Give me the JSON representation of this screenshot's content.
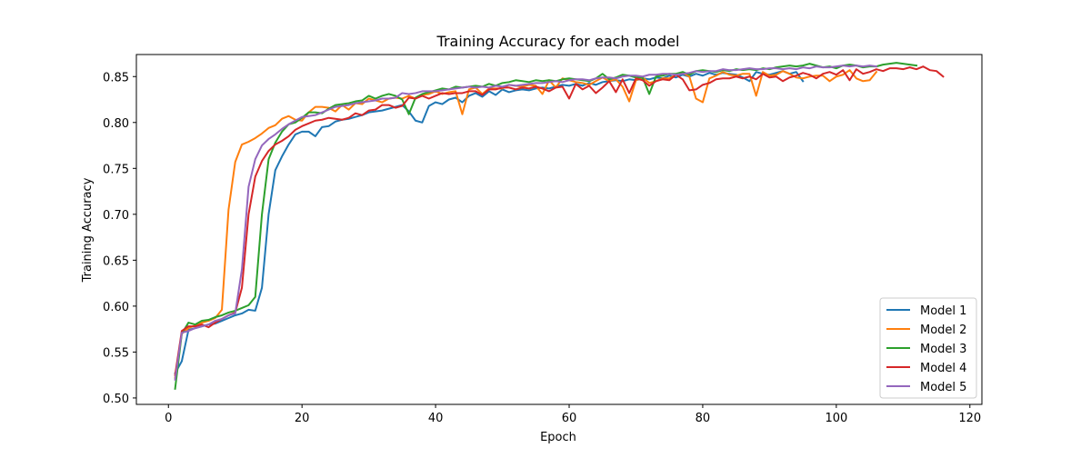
{
  "chart_data": {
    "type": "line",
    "title": "Training Accuracy for each model",
    "xlabel": "Epoch",
    "ylabel": "Training Accuracy",
    "xlim": [
      -4.8,
      121.8
    ],
    "ylim": [
      0.493,
      0.874
    ],
    "xticks": [
      0,
      20,
      40,
      60,
      80,
      100,
      120
    ],
    "yticks": [
      0.5,
      0.55,
      0.6,
      0.65,
      0.7,
      0.75,
      0.8,
      0.85
    ],
    "ytick_labels": [
      "0.50",
      "0.55",
      "0.60",
      "0.65",
      "0.70",
      "0.75",
      "0.80",
      "0.85"
    ],
    "grid": false,
    "legend_position": "lower-right",
    "series": [
      {
        "name": "Model 1",
        "color": "#1f77b4",
        "x_start": 1,
        "values": [
          0.527,
          0.54,
          0.574,
          0.576,
          0.578,
          0.58,
          0.581,
          0.584,
          0.587,
          0.59,
          0.592,
          0.596,
          0.595,
          0.62,
          0.7,
          0.748,
          0.763,
          0.776,
          0.787,
          0.79,
          0.79,
          0.785,
          0.795,
          0.796,
          0.801,
          0.803,
          0.804,
          0.806,
          0.808,
          0.811,
          0.812,
          0.813,
          0.815,
          0.817,
          0.819,
          0.812,
          0.802,
          0.8,
          0.818,
          0.822,
          0.82,
          0.825,
          0.827,
          0.822,
          0.829,
          0.832,
          0.828,
          0.834,
          0.83,
          0.836,
          0.833,
          0.835,
          0.836,
          0.835,
          0.837,
          0.838,
          0.837,
          0.839,
          0.841,
          0.84,
          0.842,
          0.84,
          0.843,
          0.841,
          0.844,
          0.845,
          0.846,
          0.845,
          0.847,
          0.846,
          0.848,
          0.847,
          0.849,
          0.848,
          0.851,
          0.849,
          0.852,
          0.85,
          0.853,
          0.851,
          0.854,
          0.852,
          0.854,
          0.853,
          0.852,
          0.849,
          0.845,
          0.855,
          0.853,
          0.852,
          0.854,
          0.856,
          0.853,
          0.855,
          0.845
        ]
      },
      {
        "name": "Model 2",
        "color": "#ff7f0e",
        "x_start": 1,
        "values": [
          0.522,
          0.57,
          0.576,
          0.579,
          0.582,
          0.584,
          0.587,
          0.596,
          0.705,
          0.757,
          0.776,
          0.779,
          0.783,
          0.788,
          0.794,
          0.797,
          0.804,
          0.807,
          0.803,
          0.802,
          0.811,
          0.817,
          0.817,
          0.816,
          0.812,
          0.819,
          0.814,
          0.821,
          0.82,
          0.826,
          0.824,
          0.822,
          0.826,
          0.827,
          0.826,
          0.829,
          0.826,
          0.83,
          0.831,
          0.834,
          0.831,
          0.833,
          0.834,
          0.809,
          0.836,
          0.838,
          0.831,
          0.837,
          0.837,
          0.837,
          0.841,
          0.84,
          0.839,
          0.841,
          0.84,
          0.831,
          0.846,
          0.838,
          0.848,
          0.846,
          0.844,
          0.843,
          0.841,
          0.845,
          0.849,
          0.845,
          0.847,
          0.839,
          0.823,
          0.846,
          0.849,
          0.843,
          0.845,
          0.848,
          0.848,
          0.852,
          0.854,
          0.85,
          0.826,
          0.822,
          0.848,
          0.851,
          0.855,
          0.852,
          0.851,
          0.853,
          0.853,
          0.829,
          0.855,
          0.851,
          0.852,
          0.856,
          0.853,
          0.849,
          0.848,
          0.85,
          0.851,
          0.851,
          0.845,
          0.85,
          0.852,
          0.857,
          0.848,
          0.845,
          0.846,
          0.855
        ]
      },
      {
        "name": "Model 3",
        "color": "#2ca02c",
        "x_start": 1,
        "values": [
          0.51,
          0.57,
          0.582,
          0.58,
          0.584,
          0.585,
          0.588,
          0.59,
          0.593,
          0.595,
          0.598,
          0.601,
          0.61,
          0.7,
          0.76,
          0.778,
          0.79,
          0.798,
          0.8,
          0.805,
          0.811,
          0.811,
          0.81,
          0.815,
          0.819,
          0.82,
          0.821,
          0.823,
          0.824,
          0.829,
          0.826,
          0.829,
          0.831,
          0.829,
          0.825,
          0.809,
          0.827,
          0.831,
          0.833,
          0.835,
          0.837,
          0.836,
          0.839,
          0.838,
          0.839,
          0.84,
          0.839,
          0.842,
          0.84,
          0.843,
          0.844,
          0.846,
          0.845,
          0.844,
          0.846,
          0.845,
          0.846,
          0.845,
          0.847,
          0.848,
          0.847,
          0.846,
          0.845,
          0.848,
          0.853,
          0.847,
          0.849,
          0.852,
          0.851,
          0.849,
          0.849,
          0.831,
          0.85,
          0.851,
          0.853,
          0.853,
          0.855,
          0.852,
          0.856,
          0.857,
          0.856,
          0.855,
          0.857,
          0.856,
          0.858,
          0.857,
          0.858,
          0.857,
          0.859,
          0.858,
          0.86,
          0.861,
          0.862,
          0.861,
          0.862,
          0.864,
          0.862,
          0.86,
          0.861,
          0.859,
          0.862,
          0.863,
          0.862,
          0.86,
          0.861,
          0.861,
          0.863,
          0.864,
          0.865,
          0.864,
          0.863,
          0.862
        ]
      },
      {
        "name": "Model 4",
        "color": "#d62728",
        "x_start": 1,
        "values": [
          0.525,
          0.573,
          0.578,
          0.578,
          0.58,
          0.577,
          0.582,
          0.586,
          0.59,
          0.593,
          0.62,
          0.7,
          0.741,
          0.758,
          0.769,
          0.776,
          0.78,
          0.785,
          0.792,
          0.796,
          0.799,
          0.802,
          0.803,
          0.805,
          0.804,
          0.803,
          0.805,
          0.81,
          0.808,
          0.813,
          0.814,
          0.819,
          0.819,
          0.816,
          0.818,
          0.827,
          0.826,
          0.829,
          0.826,
          0.829,
          0.832,
          0.831,
          0.832,
          0.832,
          0.834,
          0.834,
          0.83,
          0.836,
          0.836,
          0.838,
          0.838,
          0.836,
          0.838,
          0.837,
          0.839,
          0.837,
          0.834,
          0.838,
          0.839,
          0.826,
          0.842,
          0.836,
          0.84,
          0.832,
          0.838,
          0.845,
          0.833,
          0.847,
          0.832,
          0.848,
          0.846,
          0.84,
          0.845,
          0.847,
          0.846,
          0.852,
          0.847,
          0.835,
          0.836,
          0.841,
          0.843,
          0.847,
          0.848,
          0.848,
          0.85,
          0.848,
          0.85,
          0.847,
          0.853,
          0.849,
          0.85,
          0.845,
          0.849,
          0.851,
          0.854,
          0.852,
          0.848,
          0.853,
          0.855,
          0.852,
          0.857,
          0.846,
          0.858,
          0.853,
          0.855,
          0.858,
          0.856,
          0.859,
          0.859,
          0.858,
          0.86,
          0.858,
          0.861,
          0.857,
          0.856,
          0.85
        ]
      },
      {
        "name": "Model 5",
        "color": "#9467bd",
        "x_start": 1,
        "values": [
          0.52,
          0.571,
          0.573,
          0.576,
          0.578,
          0.58,
          0.584,
          0.586,
          0.59,
          0.592,
          0.64,
          0.73,
          0.76,
          0.775,
          0.782,
          0.787,
          0.793,
          0.798,
          0.802,
          0.806,
          0.807,
          0.808,
          0.811,
          0.814,
          0.817,
          0.818,
          0.819,
          0.821,
          0.822,
          0.823,
          0.824,
          0.826,
          0.826,
          0.827,
          0.832,
          0.831,
          0.832,
          0.834,
          0.834,
          0.834,
          0.835,
          0.836,
          0.837,
          0.838,
          0.839,
          0.838,
          0.839,
          0.838,
          0.84,
          0.839,
          0.841,
          0.84,
          0.841,
          0.842,
          0.843,
          0.843,
          0.844,
          0.845,
          0.844,
          0.846,
          0.847,
          0.847,
          0.846,
          0.848,
          0.849,
          0.849,
          0.848,
          0.85,
          0.851,
          0.851,
          0.85,
          0.852,
          0.852,
          0.853,
          0.853,
          0.852,
          0.853,
          0.854,
          0.856,
          0.855,
          0.856,
          0.856,
          0.858,
          0.857,
          0.857,
          0.858,
          0.859,
          0.858,
          0.858,
          0.859,
          0.859,
          0.858,
          0.859,
          0.858,
          0.86,
          0.859,
          0.861,
          0.86,
          0.86,
          0.861,
          0.862,
          0.861,
          0.862,
          0.861,
          0.862,
          0.861
        ]
      }
    ]
  }
}
